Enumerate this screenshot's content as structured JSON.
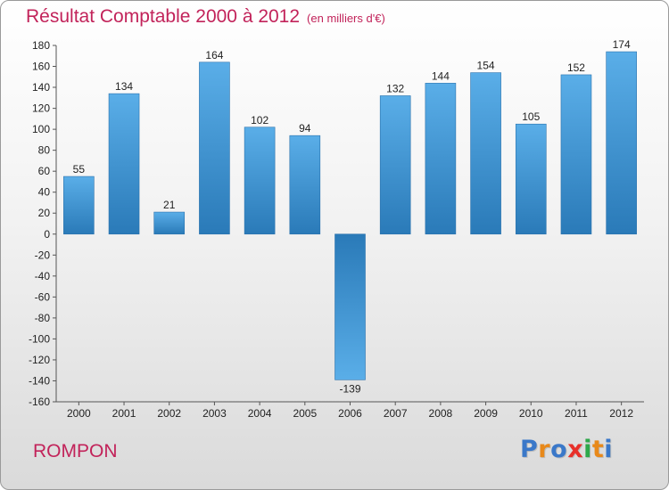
{
  "header": {
    "title": "Résultat Comptable 2000 à 2012",
    "unit_note": "(en milliers d'€)"
  },
  "footer": {
    "commune": "ROMPON",
    "brand": [
      "P",
      "r",
      "o",
      "x",
      "i",
      "t",
      "i"
    ]
  },
  "colors": {
    "title": "#c2235a",
    "bar_light": "#5aaee8",
    "bar_dark": "#2a7ab8",
    "brand": [
      "#3a78c9",
      "#e8891a",
      "#3a78c9",
      "#e8302a",
      "#2ea84a",
      "#e8891a",
      "#3a78c9"
    ]
  },
  "chart_data": {
    "type": "bar",
    "title": "Résultat Comptable 2000 à 2012",
    "xlabel": "",
    "ylabel": "",
    "categories": [
      "2000",
      "2001",
      "2002",
      "2003",
      "2004",
      "2005",
      "2006",
      "2007",
      "2008",
      "2009",
      "2010",
      "2011",
      "2012"
    ],
    "values": [
      55,
      134,
      21,
      164,
      102,
      94,
      -139,
      132,
      144,
      154,
      105,
      152,
      174
    ],
    "ylim": [
      -160,
      180
    ],
    "yticks": [
      180,
      160,
      140,
      120,
      100,
      80,
      60,
      40,
      20,
      0,
      -20,
      -40,
      -60,
      -80,
      -100,
      -120,
      -140,
      -160
    ],
    "ytick_labels": [
      "180",
      "160",
      "140",
      "120",
      "100",
      "80",
      "60",
      "40",
      "20",
      "0",
      "-20",
      "-40",
      "-60",
      "-80",
      "-100",
      "-120",
      "-140",
      "-160"
    ],
    "data_labels": [
      "55",
      "134",
      "21",
      "164",
      "102",
      "94",
      "-139",
      "132",
      "144",
      "154",
      "105",
      "152",
      "174"
    ],
    "grid": false,
    "legend": "none"
  }
}
